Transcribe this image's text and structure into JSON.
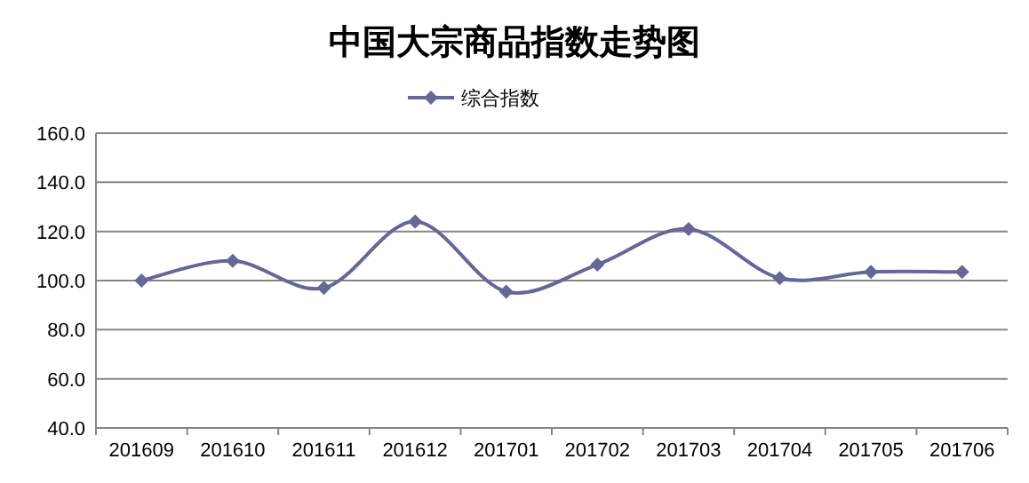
{
  "chart_data": {
    "type": "line",
    "title": "中国大宗商品指数走势图",
    "categories": [
      "201609",
      "201610",
      "201611",
      "201612",
      "201701",
      "201702",
      "201703",
      "201704",
      "201705",
      "201706"
    ],
    "series": [
      {
        "name": "综合指数",
        "color": "#666699",
        "values": [
          100,
          108,
          97,
          124,
          95.5,
          106.5,
          121,
          101,
          103.5,
          103.5
        ]
      }
    ],
    "ylim": [
      40,
      160
    ],
    "yticks": [
      {
        "value": 40,
        "label": "40.0"
      },
      {
        "value": 60,
        "label": "60.0"
      },
      {
        "value": 80,
        "label": "80.0"
      },
      {
        "value": 100,
        "label": "100.0"
      },
      {
        "value": 120,
        "label": "120.0"
      },
      {
        "value": 140,
        "label": "140.0"
      },
      {
        "value": 160,
        "label": "160.0"
      }
    ],
    "grid": "y",
    "legend": "top",
    "marker": "diamond",
    "line_style": "solid"
  }
}
